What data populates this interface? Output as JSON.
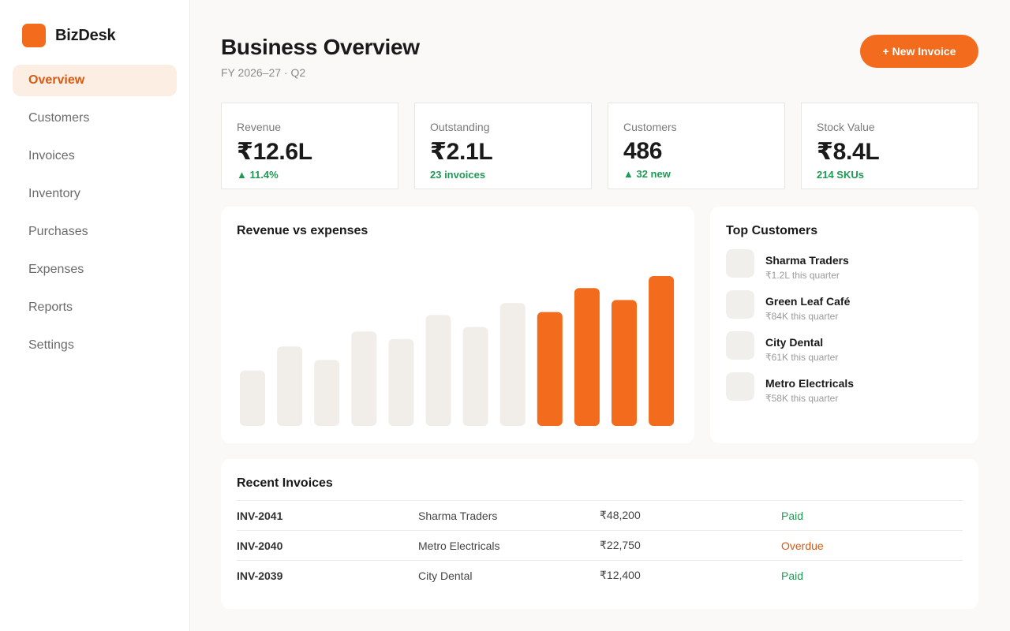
{
  "app": {
    "name": "BizDesk",
    "brand_color": "#f36b1c"
  },
  "sidebar": {
    "items": [
      {
        "label": "Overview",
        "active": true
      },
      {
        "label": "Customers"
      },
      {
        "label": "Invoices"
      },
      {
        "label": "Inventory"
      },
      {
        "label": "Purchases"
      },
      {
        "label": "Expenses"
      },
      {
        "label": "Reports"
      },
      {
        "label": "Settings"
      }
    ]
  },
  "header": {
    "title": "Business Overview",
    "subtitle": "FY 2026–27 · Q2",
    "new_invoice_label": "+ New Invoice"
  },
  "kpis": [
    {
      "label": "Revenue",
      "value": "₹12.6L",
      "delta": "▲ 11.4%"
    },
    {
      "label": "Outstanding",
      "value": "₹2.1L",
      "delta": "23 invoices"
    },
    {
      "label": "Customers",
      "value": "486",
      "delta": "▲ 32 new"
    },
    {
      "label": "Stock Value",
      "value": "₹8.4L",
      "delta": "214 SKUs"
    }
  ],
  "chart": {
    "title": "Revenue vs expenses",
    "colors": {
      "highlight": "#f36b1c",
      "muted": "#f1eeea"
    }
  },
  "chart_data": {
    "type": "bar",
    "title": "Revenue vs expenses",
    "xlabel": "",
    "ylabel": "",
    "ylim": [
      0,
      1
    ],
    "grid": false,
    "values": [
      0.37,
      0.53,
      0.44,
      0.63,
      0.58,
      0.74,
      0.66,
      0.82,
      0.76,
      0.92,
      0.84,
      1.0
    ],
    "highlighted": [
      false,
      false,
      false,
      false,
      false,
      false,
      false,
      false,
      true,
      true,
      true,
      true
    ]
  },
  "top_customers": {
    "title": "Top Customers",
    "items": [
      {
        "name": "Sharma Traders",
        "meta": "₹1.2L this quarter"
      },
      {
        "name": "Green Leaf Café",
        "meta": "₹84K this quarter"
      },
      {
        "name": "City Dental",
        "meta": "₹61K this quarter"
      },
      {
        "name": "Metro Electricals",
        "meta": "₹58K this quarter"
      }
    ]
  },
  "recent_invoices": {
    "title": "Recent Invoices",
    "rows": [
      {
        "id": "INV-2041",
        "customer": "Sharma Traders",
        "amount": "₹48,200",
        "status": "Paid",
        "status_type": "paid"
      },
      {
        "id": "INV-2040",
        "customer": "Metro Electricals",
        "amount": "₹22,750",
        "status": "Overdue",
        "status_type": "overdue"
      },
      {
        "id": "INV-2039",
        "customer": "City Dental",
        "amount": "₹12,400",
        "status": "Paid",
        "status_type": "paid"
      }
    ]
  }
}
